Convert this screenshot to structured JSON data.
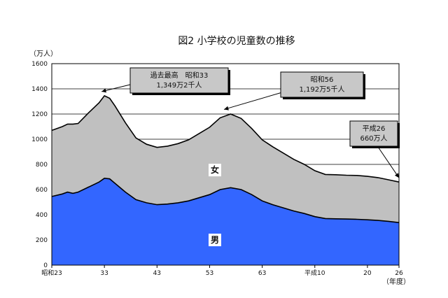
{
  "chart_data": {
    "type": "area",
    "title": "図2 小学校の児童数の推移",
    "y_unit_label": "（万人）",
    "x_unit_label": "（年度）",
    "ylim": [
      0,
      1600
    ],
    "y_ticks": [
      0,
      200,
      400,
      600,
      800,
      1000,
      1200,
      1400,
      1600
    ],
    "x_range": [
      1948,
      2014
    ],
    "x_ticks": [
      {
        "year": 1948,
        "label": "昭和23"
      },
      {
        "year": 1958,
        "label": "33"
      },
      {
        "year": 1968,
        "label": "43"
      },
      {
        "year": 1978,
        "label": "53"
      },
      {
        "year": 1988,
        "label": "63"
      },
      {
        "year": 1998,
        "label": "平成10"
      },
      {
        "year": 2008,
        "label": "20"
      },
      {
        "year": 2014,
        "label": "26"
      }
    ],
    "grid": "horizontal",
    "stacked": true,
    "series": [
      {
        "name": "男",
        "color": "#3366ff",
        "points": [
          [
            1948,
            545
          ],
          [
            1950,
            565
          ],
          [
            1951,
            580
          ],
          [
            1952,
            570
          ],
          [
            1953,
            580
          ],
          [
            1955,
            620
          ],
          [
            1957,
            660
          ],
          [
            1958,
            690
          ],
          [
            1959,
            685
          ],
          [
            1960,
            650
          ],
          [
            1962,
            580
          ],
          [
            1964,
            520
          ],
          [
            1966,
            495
          ],
          [
            1968,
            480
          ],
          [
            1970,
            485
          ],
          [
            1972,
            495
          ],
          [
            1974,
            510
          ],
          [
            1976,
            535
          ],
          [
            1978,
            560
          ],
          [
            1980,
            600
          ],
          [
            1982,
            615
          ],
          [
            1984,
            600
          ],
          [
            1986,
            560
          ],
          [
            1988,
            510
          ],
          [
            1990,
            480
          ],
          [
            1992,
            455
          ],
          [
            1994,
            430
          ],
          [
            1996,
            410
          ],
          [
            1998,
            385
          ],
          [
            2000,
            370
          ],
          [
            2002,
            368
          ],
          [
            2004,
            366
          ],
          [
            2006,
            364
          ],
          [
            2008,
            360
          ],
          [
            2010,
            355
          ],
          [
            2012,
            348
          ],
          [
            2014,
            338
          ]
        ]
      },
      {
        "name": "女",
        "color": "#c0c0c0",
        "points": [
          [
            1948,
            525
          ],
          [
            1950,
            535
          ],
          [
            1951,
            540
          ],
          [
            1952,
            550
          ],
          [
            1953,
            545
          ],
          [
            1955,
            590
          ],
          [
            1957,
            630
          ],
          [
            1958,
            655
          ],
          [
            1959,
            640
          ],
          [
            1960,
            615
          ],
          [
            1962,
            550
          ],
          [
            1964,
            490
          ],
          [
            1966,
            465
          ],
          [
            1968,
            455
          ],
          [
            1970,
            460
          ],
          [
            1972,
            470
          ],
          [
            1974,
            485
          ],
          [
            1976,
            510
          ],
          [
            1978,
            535
          ],
          [
            1980,
            570
          ],
          [
            1982,
            585
          ],
          [
            1984,
            565
          ],
          [
            1986,
            525
          ],
          [
            1988,
            485
          ],
          [
            1990,
            460
          ],
          [
            1992,
            435
          ],
          [
            1994,
            410
          ],
          [
            1996,
            390
          ],
          [
            1998,
            365
          ],
          [
            2000,
            350
          ],
          [
            2002,
            350
          ],
          [
            2004,
            348
          ],
          [
            2006,
            348
          ],
          [
            2008,
            345
          ],
          [
            2010,
            340
          ],
          [
            2012,
            330
          ],
          [
            2014,
            322
          ]
        ]
      }
    ],
    "annotations": [
      {
        "year": 1958,
        "value": 1345,
        "lines": [
          "過去最高　昭和33",
          "1,349万2千人"
        ]
      },
      {
        "year": 1981,
        "value": 1192,
        "lines": [
          "昭和56",
          "1,192万5千人"
        ]
      },
      {
        "year": 2014,
        "value": 660,
        "lines": [
          "平成26",
          "660万人"
        ]
      }
    ]
  }
}
